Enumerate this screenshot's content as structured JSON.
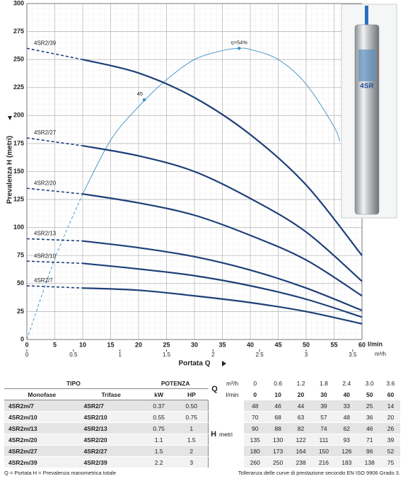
{
  "chart_data": {
    "type": "line",
    "y_label": "Prevalenza H (metri)",
    "x_label": "Portata Q",
    "x_unit": "l/min",
    "x2_unit": "m³/h",
    "x": [
      0,
      10,
      20,
      30,
      40,
      50,
      60
    ],
    "xlim": [
      0,
      60
    ],
    "xticks": [
      0,
      5,
      10,
      15,
      20,
      25,
      30,
      35,
      40,
      45,
      50,
      55,
      60
    ],
    "x2lim": [
      0,
      3.6
    ],
    "x2ticks": [
      0,
      0.5,
      1,
      1.5,
      2,
      2.5,
      3,
      3.5
    ],
    "ylim": [
      0,
      300
    ],
    "yticks": [
      0,
      25,
      50,
      75,
      100,
      125,
      150,
      175,
      200,
      225,
      250,
      275,
      300
    ],
    "grid": true,
    "series": [
      {
        "name": "4SR2/7",
        "color": "#1d3f78",
        "values": [
          48,
          46,
          44,
          39,
          33,
          25,
          14
        ]
      },
      {
        "name": "4SR2/10",
        "color": "#1d3f78",
        "values": [
          70,
          68,
          63,
          57,
          48,
          36,
          20
        ]
      },
      {
        "name": "4SR2/13",
        "color": "#1d3f78",
        "values": [
          90,
          88,
          82,
          74,
          62,
          46,
          26
        ]
      },
      {
        "name": "4SR2/20",
        "color": "#1d3f78",
        "values": [
          135,
          130,
          122,
          111,
          93,
          71,
          39
        ]
      },
      {
        "name": "4SR2/27",
        "color": "#1d3f78",
        "values": [
          180,
          173,
          164,
          150,
          126,
          96,
          52
        ]
      },
      {
        "name": "4SR2/39",
        "color": "#1d3f78",
        "values": [
          260,
          250,
          238,
          216,
          183,
          138,
          75
        ]
      }
    ],
    "efficiency": {
      "color": "#3a8fc8",
      "x": [
        0,
        5,
        10,
        15,
        20,
        25,
        30,
        35,
        38,
        40,
        45,
        50,
        55,
        56
      ],
      "values": [
        0,
        72,
        130,
        178,
        208,
        232,
        250,
        258,
        260,
        259,
        250,
        228,
        190,
        177
      ],
      "annotations": [
        {
          "text": "45",
          "x": 21,
          "y": 214
        },
        {
          "text": "η=54%",
          "x": 38,
          "y": 260
        }
      ]
    },
    "product_label": "4SR"
  },
  "table": {
    "tipo": "TIPO",
    "potenza": "POTENZA",
    "q": "Q",
    "q_unit_m3h": "m³/h",
    "q_unit_lmin": "l/min",
    "monofase": "Monofase",
    "trifase": "Trifase",
    "kw": "kW",
    "hp": "HP",
    "h": "H",
    "h_unit": "metri",
    "q_m3h": [
      "0",
      "0.6",
      "1.2",
      "1.8",
      "2.4",
      "3.0",
      "3.6"
    ],
    "rows": [
      [
        "4SR2m/7",
        "4SR2/7",
        "0.37",
        "0.50"
      ],
      [
        "4SR2m/10",
        "4SR2/10",
        "0.55",
        "0.75"
      ],
      [
        "4SR2m/13",
        "4SR2/13",
        "0.75",
        "1"
      ],
      [
        "4SR2m/20",
        "4SR2/20",
        "1.1",
        "1.5"
      ],
      [
        "4SR2m/27",
        "4SR2/27",
        "1.5",
        "2"
      ],
      [
        "4SR2m/39",
        "4SR2/39",
        "2.2",
        "3"
      ]
    ]
  },
  "footer": {
    "left": "Q = Portata   H = Prevalenza manometrica totale",
    "right": "Tolleranza delle curve di prestazione secondo EN ISO 9906 Grado 3."
  }
}
